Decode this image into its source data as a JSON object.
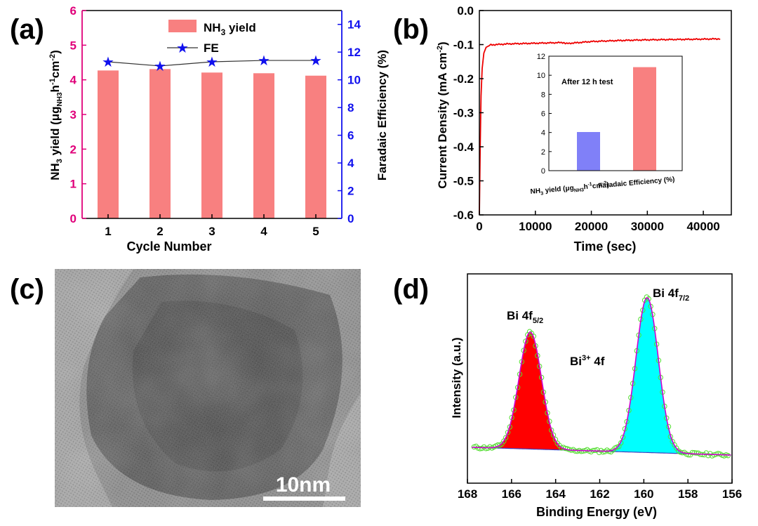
{
  "panels": {
    "a": "(a)",
    "b": "(b)",
    "c": "(c)",
    "d": "(d)"
  },
  "colors": {
    "bar": "#f88080",
    "fe": "#1010ee",
    "left_axis": "#e0007a",
    "right_axis": "#1010ee",
    "current": "#ee0000",
    "inset_bar1": "#8080f8",
    "inset_bar2": "#f88080",
    "peak1": "#ff0000",
    "peak2": "#00ffff",
    "fit": "#d000d0",
    "raw": "#55dd33"
  },
  "chart_data": [
    {
      "id": "a",
      "type": "bar",
      "categories": [
        "1",
        "2",
        "3",
        "4",
        "5"
      ],
      "xlabel": "Cycle Number",
      "ylim": [
        0,
        6
      ],
      "y_ticks": [
        "0",
        "1",
        "2",
        "3",
        "4",
        "5",
        "6"
      ],
      "y2lim": [
        0,
        15
      ],
      "y2_ticks": [
        "0",
        "2",
        "4",
        "6",
        "8",
        "10",
        "12",
        "14"
      ],
      "ylabel_parts": [
        "NH",
        "3",
        " yield (μg",
        "NH3",
        "h",
        "-1",
        "cm",
        "-2",
        ")"
      ],
      "y2label": "Faradaic Efficiency (%)",
      "legend": {
        "bar_pre": "NH",
        "bar_sub": "3",
        "bar_post": " yield",
        "line": "FE",
        "position": "top-center"
      },
      "series": [
        {
          "values": [
            4.27,
            4.31,
            4.21,
            4.19,
            4.12
          ],
          "axis": "left",
          "style": "bar"
        },
        {
          "values": [
            11.3,
            11.0,
            11.3,
            11.4,
            11.4
          ],
          "axis": "right",
          "style": "line-star"
        }
      ]
    },
    {
      "id": "b",
      "type": "line",
      "xlabel": "Time (sec)",
      "ylabel_parts": [
        "Current Density (mA cm",
        "-2",
        ")"
      ],
      "xlim": [
        0,
        45000
      ],
      "x_ticks": [
        "0",
        "10000",
        "20000",
        "30000",
        "40000"
      ],
      "ylim": [
        -0.6,
        0.0
      ],
      "y_ticks": [
        "0.0",
        "-0.1",
        "-0.2",
        "-0.3",
        "-0.4",
        "-0.5",
        "-0.6"
      ],
      "series": [
        {
          "x": [
            0,
            150,
            300,
            500,
            800,
            1200,
            2000,
            5000,
            10000,
            15000,
            15500,
            20000,
            25000,
            30000,
            35000,
            40000,
            43000
          ],
          "y": [
            -0.6,
            -0.4,
            -0.25,
            -0.17,
            -0.125,
            -0.108,
            -0.101,
            -0.098,
            -0.096,
            -0.094,
            -0.097,
            -0.091,
            -0.088,
            -0.086,
            -0.085,
            -0.084,
            -0.083
          ]
        }
      ],
      "inset": {
        "type": "bar",
        "annotation": "After 12 h test",
        "ylim": [
          0,
          12
        ],
        "y_ticks": [
          "0",
          "2",
          "4",
          "6",
          "8",
          "10",
          "12"
        ],
        "cat1_parts": [
          "NH",
          "3",
          " yield (μg",
          "NH3",
          "h",
          "-1",
          "cm",
          "-2",
          ")"
        ],
        "cat2": "Faradaic Efficiency (%)",
        "values": [
          4.05,
          10.85
        ]
      }
    },
    {
      "id": "d",
      "type": "line",
      "xlabel": "Binding Energy (eV)",
      "ylabel": "Intensity (a.u.)",
      "xlim": [
        168,
        156
      ],
      "x_ticks": [
        "168",
        "166",
        "164",
        "162",
        "160",
        "158",
        "156"
      ],
      "annotations": {
        "peak1_main": "Bi 4f",
        "peak1_sub": "5/2",
        "peak2_main": "Bi 4f",
        "peak2_sub": "7/2",
        "center_main": "Bi",
        "center_sup": "3+",
        "center_post": " 4f"
      },
      "peaks": [
        {
          "name": "Bi 4f5/2",
          "center": 165.15,
          "fwhm": 1.2,
          "height": 0.74
        },
        {
          "name": "Bi 4f7/2",
          "center": 159.85,
          "fwhm": 1.2,
          "height": 0.98
        }
      ],
      "baseline": [
        0.05,
        0.0
      ]
    }
  ],
  "tem": {
    "scale_bar": "10nm"
  }
}
